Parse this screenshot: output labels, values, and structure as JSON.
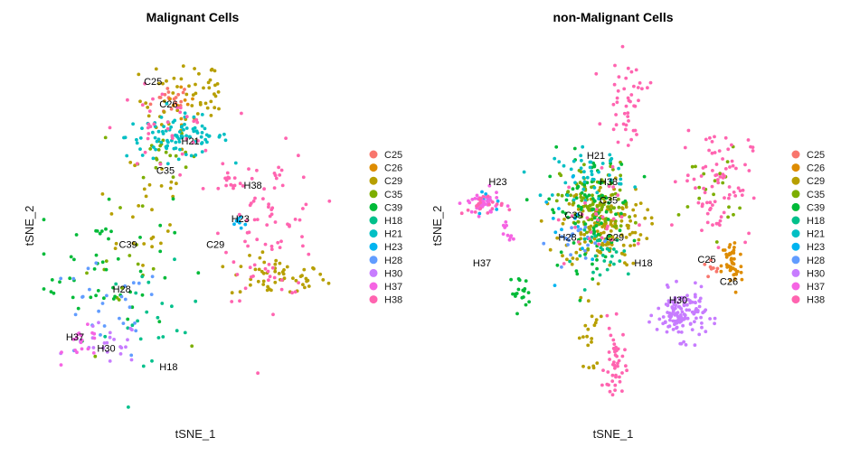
{
  "palette": {
    "C25": "#F8766D",
    "C26": "#DE8C00",
    "C29": "#B79F00",
    "C35": "#7CAE00",
    "C39": "#00BA38",
    "H18": "#00C08B",
    "H21": "#00BFC4",
    "H23": "#00B4F0",
    "H28": "#619CFF",
    "H30": "#C77CFF",
    "H37": "#F564E3",
    "H38": "#FF64B0"
  },
  "legend_order": [
    "C25",
    "C26",
    "C29",
    "C35",
    "C39",
    "H18",
    "H21",
    "H23",
    "H28",
    "H30",
    "H37",
    "H38"
  ],
  "chart_data": [
    {
      "type": "scatter",
      "title": "Malignant Cells",
      "xlabel": "tSNE_1",
      "ylabel": "tSNE_2",
      "xlim": [
        -50,
        50
      ],
      "ylim": [
        -50,
        50
      ],
      "grid": false,
      "legend": "right",
      "clusters": [
        {
          "name": "C25",
          "label": "C25",
          "label_at": [
            -14,
            38
          ],
          "blobs": [
            [
              -8,
              34,
              6,
              4,
              18
            ]
          ]
        },
        {
          "name": "C26",
          "label": "C26",
          "label_at": [
            -9,
            32
          ],
          "blobs": [
            [
              -4,
              33,
              5,
              4,
              10
            ]
          ]
        },
        {
          "name": "C29",
          "label": "C29",
          "label_at": [
            6,
            -6
          ],
          "blobs": [
            [
              -5,
              34,
              12,
              10,
              40
            ],
            [
              26,
              -14,
              14,
              5,
              55
            ],
            [
              -18,
              6,
              16,
              18,
              28
            ],
            [
              6,
              36,
              4,
              6,
              14
            ]
          ]
        },
        {
          "name": "C35",
          "label": "C35",
          "label_at": [
            -10,
            14
          ],
          "blobs": [
            [
              -12,
              20,
              9,
              6,
              22
            ],
            [
              -24,
              -15,
              15,
              16,
              15
            ]
          ]
        },
        {
          "name": "C39",
          "label": "C39",
          "label_at": [
            -22,
            -6
          ],
          "blobs": [
            [
              -30,
              -10,
              20,
              18,
              50
            ]
          ]
        },
        {
          "name": "H18",
          "label": "H18",
          "label_at": [
            -9,
            -39
          ],
          "blobs": [
            [
              -14,
              -27,
              14,
              14,
              22
            ]
          ]
        },
        {
          "name": "H21",
          "label": "H21",
          "label_at": [
            -2,
            22
          ],
          "blobs": [
            [
              -6,
              24,
              15,
              5,
              95
            ]
          ]
        },
        {
          "name": "H23",
          "label": "H23",
          "label_at": [
            14,
            1
          ],
          "blobs": [
            [
              14,
              1,
              3,
              2,
              8
            ]
          ]
        },
        {
          "name": "H28",
          "label": "H28",
          "label_at": [
            -24,
            -18
          ],
          "blobs": [
            [
              -30,
              -24,
              18,
              12,
              28
            ]
          ]
        },
        {
          "name": "H30",
          "label": "H30",
          "label_at": [
            -29,
            -34
          ],
          "blobs": [
            [
              -29,
              -32,
              10,
              5,
              25
            ]
          ]
        },
        {
          "name": "H37",
          "label": "H37",
          "label_at": [
            -39,
            -31
          ],
          "blobs": [
            [
              -36,
              -32,
              6,
              4,
              18
            ]
          ]
        },
        {
          "name": "H38",
          "label": "H38",
          "label_at": [
            18,
            10
          ],
          "blobs": [
            [
              24,
              0,
              14,
              18,
              80
            ],
            [
              -10,
              26,
              14,
              10,
              35
            ],
            [
              10,
              12,
              6,
              3,
              14
            ]
          ]
        }
      ]
    },
    {
      "type": "scatter",
      "title": "non-Malignant Cells",
      "xlabel": "tSNE_1",
      "ylabel": "tSNE_2",
      "xlim": [
        -50,
        50
      ],
      "ylim": [
        -50,
        50
      ],
      "grid": false,
      "legend": "right",
      "clusters": [
        {
          "name": "C25",
          "label": "C25",
          "label_at": [
            29,
            -10
          ],
          "blobs": [
            [
              30,
              -12,
              3,
              3,
              8
            ]
          ]
        },
        {
          "name": "C26",
          "label": "C26",
          "label_at": [
            36,
            -16
          ],
          "blobs": [
            [
              37,
              -11,
              3,
              7,
              45
            ]
          ]
        },
        {
          "name": "C29",
          "label": "C29",
          "label_at": [
            0,
            -4
          ],
          "blobs": [
            [
              -4,
              0,
              12,
              10,
              160
            ],
            [
              -8,
              -30,
              3,
              10,
              20
            ]
          ]
        },
        {
          "name": "C35",
          "label": "C35",
          "label_at": [
            -2,
            6
          ],
          "blobs": [
            [
              -6,
              6,
              10,
              10,
              100
            ],
            [
              30,
              10,
              8,
              10,
              20
            ]
          ]
        },
        {
          "name": "C39",
          "label": "C39",
          "label_at": [
            -13,
            2
          ],
          "blobs": [
            [
              -8,
              4,
              12,
              14,
              90
            ],
            [
              -30,
              -18,
              3,
              4,
              18
            ]
          ]
        },
        {
          "name": "H18",
          "label": "H18",
          "label_at": [
            9,
            -11
          ],
          "blobs": [
            [
              -2,
              -8,
              10,
              6,
              30
            ]
          ]
        },
        {
          "name": "H21",
          "label": "H21",
          "label_at": [
            -6,
            18
          ],
          "blobs": [
            [
              -8,
              14,
              10,
              6,
              45
            ]
          ]
        },
        {
          "name": "H23",
          "label": "H23",
          "label_at": [
            -37,
            11
          ],
          "blobs": [
            [
              -40,
              6,
              6,
              3,
              8
            ],
            [
              -12,
              0,
              10,
              10,
              12
            ]
          ]
        },
        {
          "name": "H28",
          "label": "H28",
          "label_at": [
            -15,
            -4
          ],
          "blobs": [
            [
              -12,
              -4,
              8,
              6,
              20
            ]
          ]
        },
        {
          "name": "H30",
          "label": "H30",
          "label_at": [
            20,
            -21
          ],
          "blobs": [
            [
              21,
              -24,
              7,
              6,
              130
            ]
          ]
        },
        {
          "name": "H37",
          "label": "H37",
          "label_at": [
            -42,
            -11
          ],
          "blobs": [
            [
              -42,
              6,
              5,
              3,
              40
            ],
            [
              -34,
              -2,
              2,
              4,
              10
            ]
          ]
        },
        {
          "name": "H38",
          "label": "H38",
          "label_at": [
            -2,
            11
          ],
          "blobs": [
            [
              0,
              -38,
              3,
              10,
              45
            ],
            [
              4,
              34,
              6,
              10,
              45
            ],
            [
              32,
              12,
              10,
              14,
              80
            ],
            [
              -8,
              2,
              10,
              12,
              30
            ],
            [
              -42,
              5,
              6,
              3,
              20
            ]
          ]
        }
      ]
    }
  ]
}
